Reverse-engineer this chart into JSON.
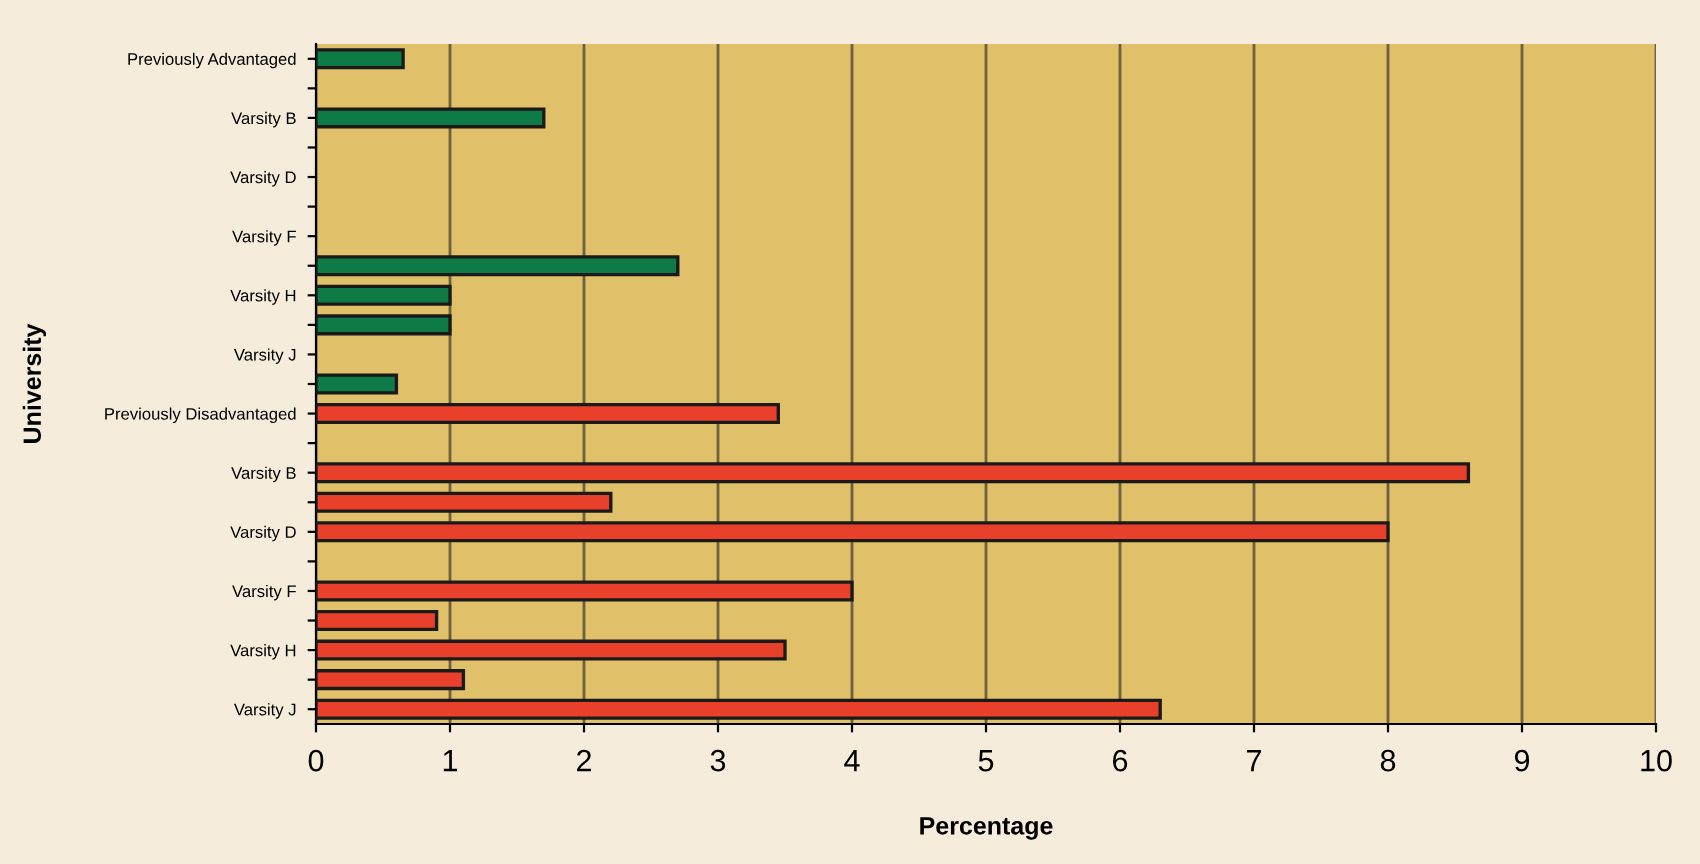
{
  "chart_data": {
    "type": "bar",
    "orientation": "horizontal",
    "xlabel": "Percentage",
    "ylabel": "University",
    "categories": [
      "Previously Advantaged",
      null,
      "Varsity B",
      null,
      "Varsity D",
      null,
      "Varsity F",
      null,
      "Varsity H",
      null,
      "Varsity J",
      null,
      "Previously Disadvantaged",
      null,
      "Varsity B",
      null,
      "Varsity D",
      null,
      "Varsity F",
      null,
      "Varsity H",
      null,
      "Varsity J"
    ],
    "values": [
      0.65,
      null,
      1.7,
      null,
      null,
      null,
      null,
      2.7,
      1.0,
      1.0,
      null,
      0.6,
      3.45,
      null,
      8.6,
      2.2,
      8.0,
      null,
      4.0,
      0.9,
      3.5,
      1.1,
      6.3
    ],
    "colors": [
      "#0e7a45",
      "#0e7a45",
      "#0e7a45",
      "#0e7a45",
      "#0e7a45",
      "#0e7a45",
      "#0e7a45",
      "#0e7a45",
      "#0e7a45",
      "#0e7a45",
      "#0e7a45",
      "#0e7a45",
      "#e8402a",
      "#e8402a",
      "#e8402a",
      "#e8402a",
      "#e8402a",
      "#e8402a",
      "#e8402a",
      "#e8402a",
      "#e8402a",
      "#e8402a",
      "#e8402a"
    ],
    "xlim": [
      0,
      10
    ],
    "xticks": [
      0,
      1,
      2,
      3,
      4,
      5,
      6,
      7,
      8,
      9,
      10
    ],
    "grid": "x",
    "legend": false
  }
}
